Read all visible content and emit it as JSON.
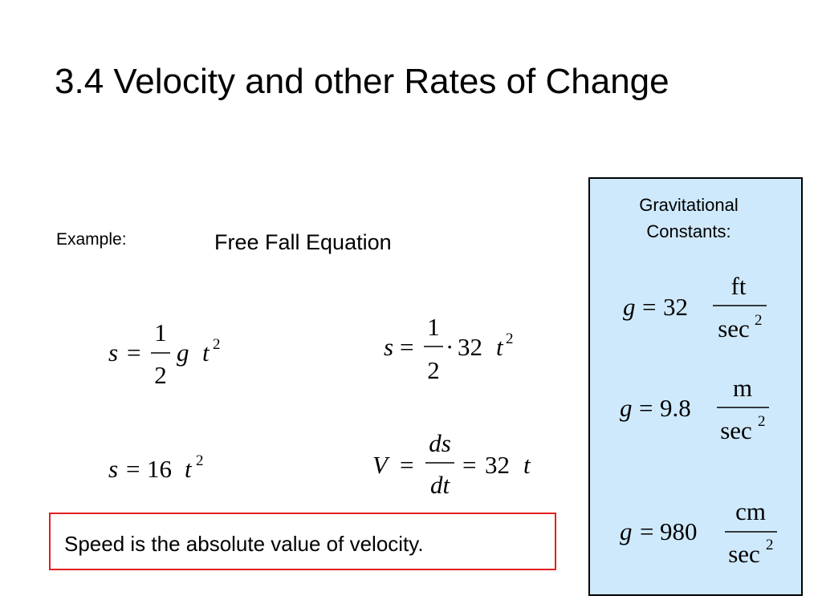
{
  "title": "3.4 Velocity and other Rates of Change",
  "example_label": "Example:",
  "subtitle": "Free Fall Equation",
  "equations": [
    {
      "pieces": [
        "s",
        "=",
        "1",
        "2",
        "g",
        "t",
        "2"
      ]
    },
    {
      "pieces": [
        "s",
        "=",
        "1",
        "2",
        "·",
        "32",
        "t",
        "2"
      ]
    },
    {
      "pieces": [
        "s",
        "=",
        "16",
        "t",
        "2"
      ]
    },
    {
      "pieces": [
        "V",
        "=",
        "ds",
        "dt",
        "=",
        "32",
        "t"
      ]
    }
  ],
  "note": "Speed is the absolute value of velocity.",
  "constants_box": {
    "heading": [
      "Gravitational",
      "Constants:"
    ],
    "constants": [
      {
        "symbol": "g",
        "equals": "=",
        "value": "32",
        "numerator": "ft",
        "denominator": "sec",
        "exponent": "2"
      },
      {
        "symbol": "g",
        "equals": "=",
        "value": "9.8",
        "numerator": "m",
        "denominator": "sec",
        "exponent": "2"
      },
      {
        "symbol": "g",
        "equals": "=",
        "value": "980",
        "numerator": "cm",
        "denominator": "sec",
        "exponent": "2"
      }
    ]
  }
}
